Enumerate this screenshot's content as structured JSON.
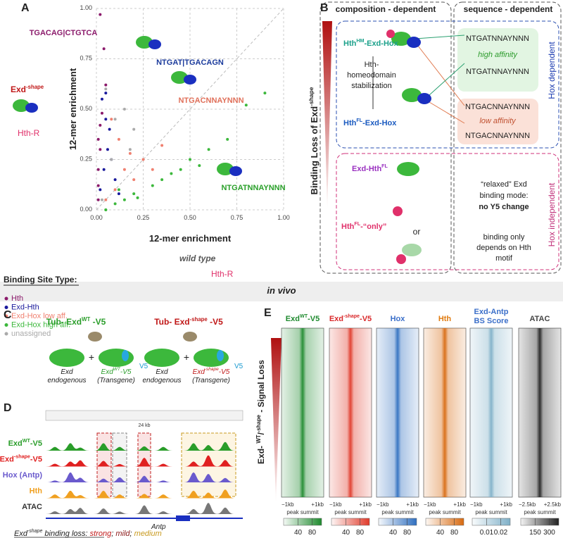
{
  "panel_a": {
    "letter": "A",
    "chart_data": {
      "type": "scatter",
      "xlabel": "12-mer enrichment",
      "ylabel": "12-mer enrichment",
      "xlim": [
        0,
        1
      ],
      "ylim": [
        0,
        1
      ],
      "xticks": [
        {
          "value": 0,
          "label": "0.00"
        },
        0.25,
        {
          "value": 0.5,
          "label": "0.50"
        },
        0.75,
        {
          "value": 1,
          "label": "1.00"
        }
      ],
      "yticks": [
        {
          "value": 0,
          "label": "0.00"
        },
        0.25,
        {
          "value": 0.5,
          "label": "0.50"
        },
        0.75,
        {
          "value": 1,
          "label": "1.00"
        }
      ],
      "grid": true,
      "legend_title": "Binding Site Type:",
      "series": [
        {
          "name": "Hth",
          "color": "#8b1a6b",
          "x": [
            0.01,
            0.01,
            0.01,
            0.02,
            0.01,
            0.02,
            0.03,
            0.05,
            0.04,
            0.02
          ],
          "values": [
            0.05,
            0.12,
            0.2,
            0.3,
            0.35,
            0.42,
            0.48,
            0.62,
            0.8,
            0.97
          ]
        },
        {
          "name": "Exd-Hth",
          "color": "#1a1a9c",
          "x": [
            0.02,
            0.04,
            0.06,
            0.05,
            0.08,
            0.07,
            0.03,
            0.1,
            0.05,
            0.12
          ],
          "values": [
            0.1,
            0.2,
            0.3,
            0.45,
            0.25,
            0.4,
            0.55,
            0.15,
            0.58,
            0.08
          ]
        },
        {
          "name": "Exd-Hox low aff.",
          "color": "#f08070",
          "x": [
            0.05,
            0.1,
            0.15,
            0.2,
            0.25,
            0.12,
            0.3,
            0.08,
            0.18,
            0.35
          ],
          "values": [
            0.05,
            0.1,
            0.2,
            0.15,
            0.25,
            0.35,
            0.2,
            0.45,
            0.28,
            0.32
          ]
        },
        {
          "name": "Exd-Hox high aff.",
          "color": "#3cb83c",
          "x": [
            0.05,
            0.1,
            0.15,
            0.2,
            0.3,
            0.35,
            0.4,
            0.45,
            0.5,
            0.55,
            0.6,
            0.7,
            0.8,
            0.9,
            0.05,
            0.12,
            0.22
          ],
          "values": [
            0,
            0.03,
            0.05,
            0.08,
            0.12,
            0.15,
            0.18,
            0.2,
            0.25,
            0.22,
            0.3,
            0.35,
            0.52,
            0.58,
            0,
            0.1,
            0.06
          ]
        },
        {
          "name": "unassigned",
          "color": "#aaaaaa",
          "x": [
            0.03,
            0.08,
            0.1,
            0.15,
            0.2,
            0.05,
            0.18
          ],
          "values": [
            0.05,
            0.25,
            0.45,
            0.5,
            0.4,
            0.6,
            0.3
          ]
        }
      ]
    },
    "motifs": [
      "TGACAG|CTGTCA",
      "NTGAT|TGACAGN",
      "NTGACNNAYNNN",
      "NTGATNNAYNNN"
    ],
    "exd_shape": [
      "Exd",
      "-shape"
    ],
    "hth_r": "Hth-R",
    "wild_type": "wild type"
  },
  "panel_b": {
    "letter": "B",
    "header_left": "composition - dependent",
    "header_right": "sequence - dependent",
    "y_label": [
      "Binding Loss of Exd",
      "-shape"
    ],
    "hm_complex": [
      "Hth",
      "HM",
      "-Exd-Hox"
    ],
    "stabilization": [
      "Hth-",
      "homeodomain",
      "stabilization"
    ],
    "fl_complex": [
      "Hth",
      "FL",
      "-Exd-Hox"
    ],
    "high_box": [
      "NTGATNNAYNNN",
      "high affinity",
      "NTGATNNAYNNN"
    ],
    "low_box": [
      "NTGACNNAYNNN",
      "low affinity",
      "NTGACNNAYNNN"
    ],
    "hox_dependent": "Hox dependent",
    "exd_hth": [
      "Exd-Hth",
      "FL"
    ],
    "hth_only": [
      "Hth",
      "FL",
      "-“only”"
    ],
    "or": "or",
    "relaxed": [
      "“relaxed” Exd",
      "binding mode:",
      "no Y5 change"
    ],
    "hth_motif": [
      "binding only",
      "depends on Hth",
      "motif"
    ],
    "hox_independent": "Hox independent"
  },
  "section": "in vivo",
  "panel_c": {
    "letter": "C",
    "left_title": [
      "Tub- Exd",
      "WT",
      " -V5"
    ],
    "right_title": [
      "Tub- Exd",
      "-shape",
      " -V5"
    ],
    "plus": "+",
    "v5": "V5",
    "endogenous": [
      "Exd",
      "endogenous"
    ],
    "transgene_wt": [
      "Exd",
      "WT",
      "-V5"
    ],
    "transgene_shape": [
      "Exd",
      "-shape",
      "-V5"
    ],
    "transgene": "(Transgene)"
  },
  "panel_d": {
    "letter": "D",
    "tracks": [
      [
        "Exd",
        "WT",
        "-V5"
      ],
      [
        "Exd",
        "-shape",
        "-V5"
      ],
      [
        "Hox (Antp)"
      ],
      [
        "Hth"
      ],
      [
        "ATAC"
      ]
    ],
    "colors": [
      "#2a9d2a",
      "#e02020",
      "#6a5acd",
      "#f0a020",
      "#777777"
    ],
    "gene": "Antp",
    "scale": "24 kb",
    "legend": [
      "Exd",
      "-shape",
      " binding loss",
      ": ",
      "strong",
      "; ",
      "mild",
      "; ",
      "medium"
    ]
  },
  "panel_e": {
    "letter": "E",
    "y_label": [
      "Exd- ",
      "WT",
      "/",
      "-shape",
      " - Signal Loss"
    ],
    "center": "peak summit",
    "columns": [
      {
        "title": [
          "Exd",
          "WT",
          "-V5"
        ],
        "color": "#1e8a2e",
        "heat": "#1e8a2e",
        "left": "−1kb",
        "right": "+1kb",
        "ticks": [
          40,
          80
        ]
      },
      {
        "title": [
          "Exd",
          "-shape",
          "-V5"
        ],
        "color": "#d9282a",
        "heat": "#e03a2a",
        "left": "−1kb",
        "right": "+1kb",
        "ticks": [
          40,
          80
        ]
      },
      {
        "title": [
          "Hox"
        ],
        "color": "#3b6fc9",
        "heat": "#2f6fc0",
        "left": "−1kb",
        "right": "+1kb",
        "ticks": [
          40,
          80
        ]
      },
      {
        "title": [
          "Hth"
        ],
        "color": "#e07b10",
        "heat": "#d86a10",
        "left": "−1kb",
        "right": "+1kb",
        "ticks": [
          40,
          80
        ]
      },
      {
        "title": [
          "Exd-Antp",
          "BS Score"
        ],
        "color": "#3b6fc9",
        "heat": "#7fb0c8",
        "left": "−1kb",
        "right": "+1kb",
        "ticks": [
          0.01,
          0.02
        ]
      },
      {
        "title": [
          "ATAC"
        ],
        "color": "#444444",
        "heat": "#222222",
        "left": "−2.5kb",
        "right": "+2.5kb",
        "ticks": [
          150,
          300
        ]
      }
    ]
  }
}
